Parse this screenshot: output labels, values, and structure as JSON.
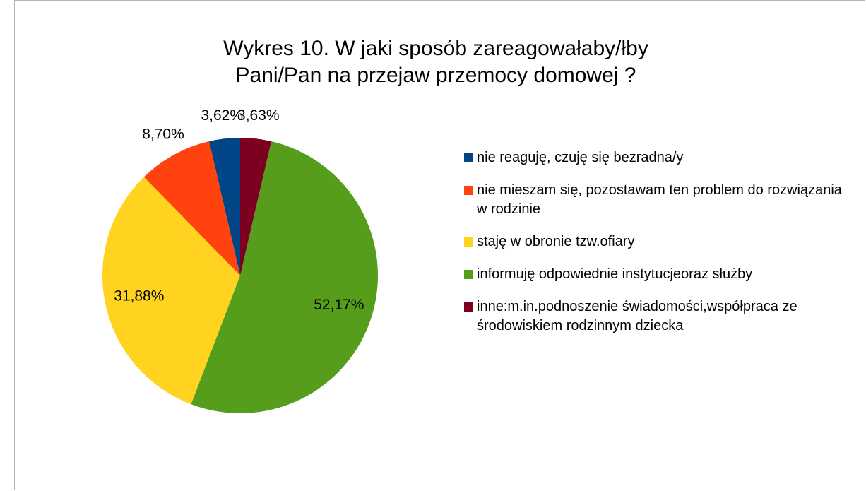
{
  "chart_data": {
    "type": "pie",
    "title": "Wykres 10. W jaki sposób zareagowałaby/łby Pani/Pan na przejaw przemocy domowej ?",
    "series": [
      {
        "name": "nie reaguję, czuję się bezradna/y",
        "color": "#004586"
      },
      {
        "name": "nie mieszam się, pozostawam ten problem do rozwiązania w rodzinie",
        "color": "#ff420e"
      },
      {
        "name": "staję w obronie tzw.ofiary",
        "color": "#ffd320"
      },
      {
        "name": "informuję odpowiednie instytucjeoraz służby",
        "color": "#579d1c"
      },
      {
        "name": "inne:m.in.podnoszenie świadomości,współpraca ze środowiskiem rodzinnym dziecka",
        "color": "#7e0021"
      }
    ],
    "values": [
      3.62,
      8.7,
      31.88,
      52.17,
      3.63
    ],
    "value_labels": [
      "3,62%",
      "8,70%",
      "31,88%",
      "52,17%",
      "3,63%"
    ],
    "legend": "right"
  }
}
